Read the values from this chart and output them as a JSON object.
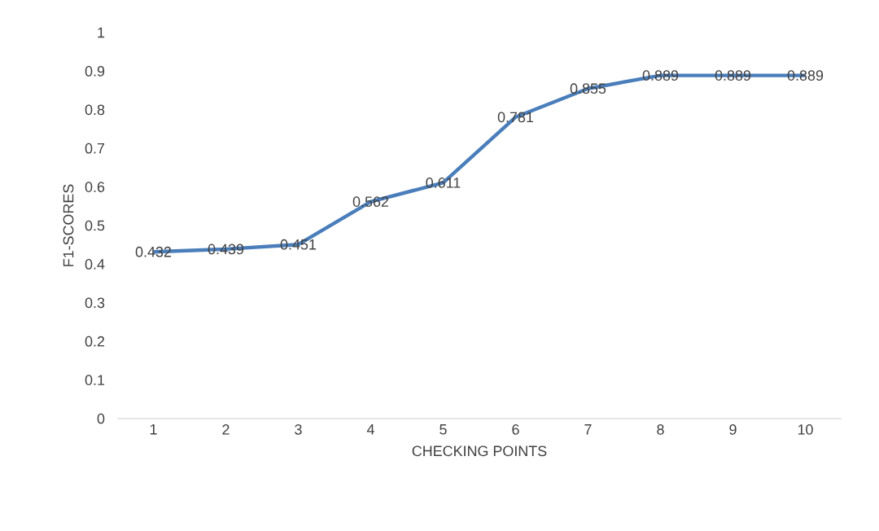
{
  "chart_data": {
    "type": "line",
    "xlabel": "CHECKING POINTS",
    "ylabel": "F1-SCORES",
    "categories": [
      "1",
      "2",
      "3",
      "4",
      "5",
      "6",
      "7",
      "8",
      "9",
      "10"
    ],
    "values": [
      0.432,
      0.439,
      0.451,
      0.562,
      0.611,
      0.781,
      0.855,
      0.889,
      0.889,
      0.889
    ],
    "color": "#4a7ebb",
    "ylim": [
      0,
      1
    ],
    "yticks": [
      0,
      0.1,
      0.2,
      0.3,
      0.4,
      0.5,
      0.6,
      0.7,
      0.8,
      0.9,
      1
    ],
    "data_labels": true,
    "marker": "none",
    "line_style": "solid"
  }
}
